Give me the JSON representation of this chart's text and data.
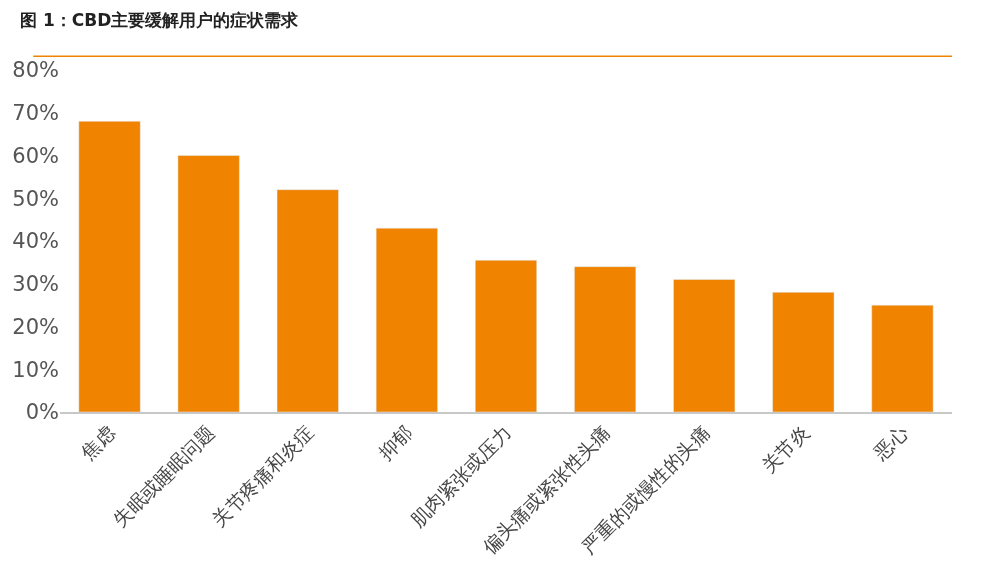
{
  "chart_data": {
    "type": "bar",
    "title": "图 1：CBD主要缓解用户的症状需求",
    "categories": [
      "焦虑",
      "失眠或睡眠问题",
      "关节疼痛和炎症",
      "抑郁",
      "肌肉紧张或压力",
      "偏头痛或紧张性头痛",
      "严重的或慢性的头痛",
      "关节炎",
      "恶心"
    ],
    "values": [
      68,
      60,
      52,
      43,
      35.5,
      34,
      31,
      28,
      25
    ],
    "color": "#f08300",
    "ylim": [
      0,
      80
    ],
    "yticks": [
      {
        "value": 0,
        "label": "0%"
      },
      {
        "value": 10,
        "label": "10%"
      },
      {
        "value": 20,
        "label": "20%"
      },
      {
        "value": 30,
        "label": "30%"
      },
      {
        "value": 40,
        "label": "40%"
      },
      {
        "value": 50,
        "label": "50%"
      },
      {
        "value": 60,
        "label": "60%"
      },
      {
        "value": 70,
        "label": "70%"
      },
      {
        "value": 80,
        "label": "80%"
      }
    ],
    "xlabel": null
  }
}
